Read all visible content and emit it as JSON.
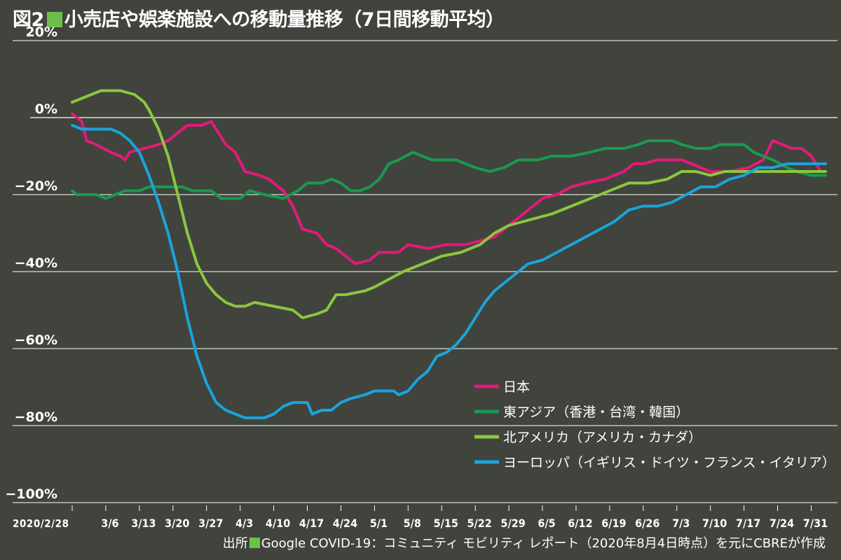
{
  "header": {
    "fig_num": "図2",
    "title_text": "小売店や娯楽施設への移動量推移（7日間移動平均）"
  },
  "footer": {
    "src_label": "出所",
    "src_text": "Google COVID-19：コミュニティ モビリティ レポート（2020年8月4日時点）を元にCBREが作成"
  },
  "chart_data": {
    "type": "line",
    "title": "小売店や娯楽施設への移動量推移（7日間移動平均）",
    "xlabel": "",
    "ylabel": "",
    "ylim": [
      -100,
      20
    ],
    "grid": true,
    "legend_position": "bottom-right",
    "y_ticks": [
      {
        "value": 20,
        "label": "20%"
      },
      {
        "value": 0,
        "label": "0%"
      },
      {
        "value": -20,
        "label": "−20%"
      },
      {
        "value": -40,
        "label": "−40%"
      },
      {
        "value": -60,
        "label": "−60%"
      },
      {
        "value": -80,
        "label": "−80%"
      },
      {
        "value": -100,
        "label": "−100%"
      }
    ],
    "x_ticks": [
      {
        "day": 0,
        "label": "2020/2/28"
      },
      {
        "day": 7,
        "label": "3/6"
      },
      {
        "day": 14,
        "label": "3/13"
      },
      {
        "day": 21,
        "label": "3/20"
      },
      {
        "day": 28,
        "label": "3/27"
      },
      {
        "day": 35,
        "label": "4/3"
      },
      {
        "day": 42,
        "label": "4/10"
      },
      {
        "day": 49,
        "label": "4/17"
      },
      {
        "day": 56,
        "label": "4/24"
      },
      {
        "day": 63,
        "label": "5/1"
      },
      {
        "day": 70,
        "label": "5/8"
      },
      {
        "day": 77,
        "label": "5/15"
      },
      {
        "day": 84,
        "label": "5/22"
      },
      {
        "day": 91,
        "label": "5/29"
      },
      {
        "day": 98,
        "label": "6/5"
      },
      {
        "day": 105,
        "label": "6/12"
      },
      {
        "day": 112,
        "label": "6/19"
      },
      {
        "day": 119,
        "label": "6/26"
      },
      {
        "day": 126,
        "label": "7/3"
      },
      {
        "day": 133,
        "label": "7/10"
      },
      {
        "day": 140,
        "label": "7/17"
      },
      {
        "day": 147,
        "label": "7/24"
      },
      {
        "day": 154,
        "label": "7/31"
      }
    ],
    "x_range": [
      0,
      157
    ],
    "series": [
      {
        "name": "日本",
        "color": "#e5197b",
        "points": [
          [
            0,
            1
          ],
          [
            2,
            -1
          ],
          [
            3,
            -6
          ],
          [
            5,
            -7
          ],
          [
            8,
            -9
          ],
          [
            10,
            -10
          ],
          [
            11,
            -11
          ],
          [
            12,
            -9
          ],
          [
            15,
            -8
          ],
          [
            18,
            -7
          ],
          [
            20,
            -6
          ],
          [
            22,
            -4
          ],
          [
            24,
            -2
          ],
          [
            27,
            -2
          ],
          [
            29,
            -1
          ],
          [
            30,
            -3
          ],
          [
            32,
            -7
          ],
          [
            34,
            -9
          ],
          [
            36,
            -14
          ],
          [
            39,
            -15
          ],
          [
            41,
            -16
          ],
          [
            44,
            -19
          ],
          [
            46,
            -23
          ],
          [
            48,
            -29
          ],
          [
            51,
            -30
          ],
          [
            53,
            -33
          ],
          [
            55,
            -34
          ],
          [
            57,
            -36
          ],
          [
            59,
            -38
          ],
          [
            62,
            -37
          ],
          [
            64,
            -35
          ],
          [
            68,
            -35
          ],
          [
            70,
            -33
          ],
          [
            74,
            -34
          ],
          [
            78,
            -33
          ],
          [
            82,
            -33
          ],
          [
            85,
            -32
          ],
          [
            88,
            -31
          ],
          [
            90,
            -29
          ],
          [
            94,
            -25
          ],
          [
            98,
            -21
          ],
          [
            101,
            -20
          ],
          [
            104,
            -18
          ],
          [
            107,
            -17
          ],
          [
            111,
            -16
          ],
          [
            115,
            -14
          ],
          [
            117,
            -12
          ],
          [
            119,
            -12
          ],
          [
            122,
            -11
          ],
          [
            124,
            -11
          ],
          [
            127,
            -11
          ],
          [
            129,
            -12
          ],
          [
            133,
            -14
          ],
          [
            137,
            -14
          ],
          [
            141,
            -13
          ],
          [
            144,
            -11
          ],
          [
            146,
            -6
          ],
          [
            148,
            -7
          ],
          [
            150,
            -8
          ],
          [
            152,
            -8
          ],
          [
            154,
            -10
          ],
          [
            156,
            -14
          ]
        ]
      },
      {
        "name": "東アジア（香港・台湾・韓国）",
        "color": "#1a9a4f",
        "points": [
          [
            0,
            -19
          ],
          [
            1,
            -20
          ],
          [
            5,
            -20
          ],
          [
            7,
            -21
          ],
          [
            9,
            -20
          ],
          [
            11,
            -19
          ],
          [
            14,
            -19
          ],
          [
            16,
            -18
          ],
          [
            20,
            -18
          ],
          [
            23,
            -18
          ],
          [
            25,
            -19
          ],
          [
            29,
            -19
          ],
          [
            31,
            -21
          ],
          [
            35,
            -21
          ],
          [
            37,
            -19
          ],
          [
            40,
            -20
          ],
          [
            44,
            -21
          ],
          [
            47,
            -19
          ],
          [
            49,
            -17
          ],
          [
            52,
            -17
          ],
          [
            54,
            -16
          ],
          [
            56,
            -17
          ],
          [
            58,
            -19
          ],
          [
            60,
            -19
          ],
          [
            62,
            -18
          ],
          [
            64,
            -16
          ],
          [
            66,
            -12
          ],
          [
            68,
            -11
          ],
          [
            71,
            -9
          ],
          [
            73,
            -10
          ],
          [
            75,
            -11
          ],
          [
            80,
            -11
          ],
          [
            84,
            -13
          ],
          [
            87,
            -14
          ],
          [
            90,
            -13
          ],
          [
            93,
            -11
          ],
          [
            97,
            -11
          ],
          [
            100,
            -10
          ],
          [
            104,
            -10
          ],
          [
            108,
            -9
          ],
          [
            111,
            -8
          ],
          [
            115,
            -8
          ],
          [
            118,
            -7
          ],
          [
            120,
            -6
          ],
          [
            122,
            -6
          ],
          [
            125,
            -6
          ],
          [
            127,
            -7
          ],
          [
            130,
            -8
          ],
          [
            133,
            -8
          ],
          [
            135,
            -7
          ],
          [
            140,
            -7
          ],
          [
            142,
            -9
          ],
          [
            144,
            -10
          ],
          [
            146,
            -11
          ],
          [
            149,
            -13
          ],
          [
            151,
            -14
          ],
          [
            154,
            -15
          ],
          [
            157,
            -15
          ]
        ]
      },
      {
        "name": "北アメリカ（アメリカ・カナダ）",
        "color": "#8cc63f",
        "points": [
          [
            0,
            4
          ],
          [
            2,
            5
          ],
          [
            4,
            6
          ],
          [
            6,
            7
          ],
          [
            10,
            7
          ],
          [
            13,
            6
          ],
          [
            15,
            4
          ],
          [
            16,
            2
          ],
          [
            18,
            -3
          ],
          [
            20,
            -10
          ],
          [
            22,
            -20
          ],
          [
            24,
            -30
          ],
          [
            26,
            -38
          ],
          [
            28,
            -43
          ],
          [
            30,
            -46
          ],
          [
            32,
            -48
          ],
          [
            34,
            -49
          ],
          [
            36,
            -49
          ],
          [
            38,
            -48
          ],
          [
            42,
            -49
          ],
          [
            46,
            -50
          ],
          [
            48,
            -52
          ],
          [
            51,
            -51
          ],
          [
            53,
            -50
          ],
          [
            55,
            -46
          ],
          [
            57,
            -46
          ],
          [
            61,
            -45
          ],
          [
            63,
            -44
          ],
          [
            66,
            -42
          ],
          [
            69,
            -40
          ],
          [
            73,
            -38
          ],
          [
            77,
            -36
          ],
          [
            81,
            -35
          ],
          [
            85,
            -33
          ],
          [
            88,
            -30
          ],
          [
            91,
            -28
          ],
          [
            94,
            -27
          ],
          [
            97,
            -26
          ],
          [
            100,
            -25
          ],
          [
            104,
            -23
          ],
          [
            108,
            -21
          ],
          [
            112,
            -19
          ],
          [
            116,
            -17
          ],
          [
            120,
            -17
          ],
          [
            124,
            -16
          ],
          [
            127,
            -14
          ],
          [
            130,
            -14
          ],
          [
            133,
            -15
          ],
          [
            136,
            -14
          ],
          [
            140,
            -14
          ],
          [
            145,
            -14
          ],
          [
            150,
            -14
          ],
          [
            157,
            -14
          ]
        ]
      },
      {
        "name": "ヨーロッパ（イギリス・ドイツ・フランス・イタリア）",
        "color": "#1aa4dd",
        "points": [
          [
            0,
            -2
          ],
          [
            2,
            -3
          ],
          [
            4,
            -3
          ],
          [
            8,
            -3
          ],
          [
            10,
            -4
          ],
          [
            12,
            -6
          ],
          [
            14,
            -9
          ],
          [
            16,
            -15
          ],
          [
            18,
            -22
          ],
          [
            20,
            -30
          ],
          [
            22,
            -40
          ],
          [
            24,
            -52
          ],
          [
            26,
            -62
          ],
          [
            28,
            -69
          ],
          [
            30,
            -74
          ],
          [
            32,
            -76
          ],
          [
            34,
            -77
          ],
          [
            36,
            -78
          ],
          [
            40,
            -78
          ],
          [
            42,
            -77
          ],
          [
            44,
            -75
          ],
          [
            46,
            -74
          ],
          [
            49,
            -74
          ],
          [
            50,
            -77
          ],
          [
            52,
            -76
          ],
          [
            54,
            -76
          ],
          [
            56,
            -74
          ],
          [
            58,
            -73
          ],
          [
            61,
            -72
          ],
          [
            63,
            -71
          ],
          [
            67,
            -71
          ],
          [
            68,
            -72
          ],
          [
            70,
            -71
          ],
          [
            72,
            -68
          ],
          [
            74,
            -66
          ],
          [
            76,
            -62
          ],
          [
            78,
            -61
          ],
          [
            80,
            -59
          ],
          [
            82,
            -56
          ],
          [
            84,
            -52
          ],
          [
            86,
            -48
          ],
          [
            88,
            -45
          ],
          [
            90,
            -43
          ],
          [
            92,
            -41
          ],
          [
            95,
            -38
          ],
          [
            98,
            -37
          ],
          [
            101,
            -35
          ],
          [
            104,
            -33
          ],
          [
            107,
            -31
          ],
          [
            110,
            -29
          ],
          [
            113,
            -27
          ],
          [
            116,
            -24
          ],
          [
            119,
            -23
          ],
          [
            122,
            -23
          ],
          [
            125,
            -22
          ],
          [
            128,
            -20
          ],
          [
            131,
            -18
          ],
          [
            134,
            -18
          ],
          [
            137,
            -16
          ],
          [
            140,
            -15
          ],
          [
            143,
            -13
          ],
          [
            146,
            -13
          ],
          [
            149,
            -12
          ],
          [
            152,
            -12
          ],
          [
            155,
            -12
          ],
          [
            157,
            -12
          ]
        ]
      }
    ]
  }
}
